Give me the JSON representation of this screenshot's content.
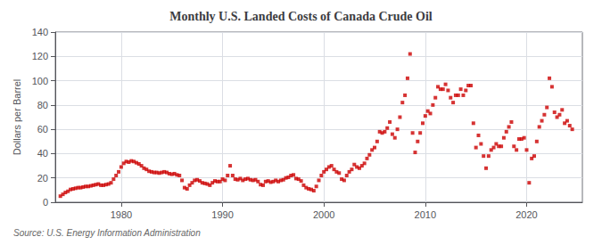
{
  "chart_data": {
    "type": "scatter",
    "title": "Monthly U.S. Landed Costs of Canada Crude Oil",
    "ylabel": "Dollars per Barrel",
    "annotation": "Source: U.S. Energy Information Administration",
    "color": "#CC0000",
    "marker": "square",
    "grid": true,
    "xlim": [
      1973.5,
      2025.5
    ],
    "xticks": [
      1980,
      1990,
      2000,
      2010,
      2020
    ],
    "ylim": [
      0,
      140
    ],
    "yticks": [
      0,
      20,
      40,
      60,
      80,
      100,
      120,
      140
    ],
    "x": [
      1974.0,
      1974.25,
      1974.5,
      1974.75,
      1975.0,
      1975.25,
      1975.5,
      1975.75,
      1976.0,
      1976.25,
      1976.5,
      1976.75,
      1977.0,
      1977.25,
      1977.5,
      1977.75,
      1978.0,
      1978.25,
      1978.5,
      1978.75,
      1979.0,
      1979.25,
      1979.5,
      1979.75,
      1980.0,
      1980.25,
      1980.5,
      1980.75,
      1981.0,
      1981.25,
      1981.5,
      1981.75,
      1982.0,
      1982.25,
      1982.5,
      1982.75,
      1983.0,
      1983.25,
      1983.5,
      1983.75,
      1984.0,
      1984.25,
      1984.5,
      1984.75,
      1985.0,
      1985.25,
      1985.5,
      1985.75,
      1986.0,
      1986.25,
      1986.5,
      1986.75,
      1987.0,
      1987.25,
      1987.5,
      1987.75,
      1988.0,
      1988.25,
      1988.5,
      1988.75,
      1989.0,
      1989.25,
      1989.5,
      1989.75,
      1990.0,
      1990.25,
      1990.5,
      1990.75,
      1991.0,
      1991.25,
      1991.5,
      1991.75,
      1992.0,
      1992.25,
      1992.5,
      1992.75,
      1993.0,
      1993.25,
      1993.5,
      1993.75,
      1994.0,
      1994.25,
      1994.5,
      1994.75,
      1995.0,
      1995.25,
      1995.5,
      1995.75,
      1996.0,
      1996.25,
      1996.5,
      1996.75,
      1997.0,
      1997.25,
      1997.5,
      1997.75,
      1998.0,
      1998.25,
      1998.5,
      1998.75,
      1999.0,
      1999.25,
      1999.5,
      1999.75,
      2000.0,
      2000.25,
      2000.5,
      2000.75,
      2001.0,
      2001.25,
      2001.5,
      2001.75,
      2002.0,
      2002.25,
      2002.5,
      2002.75,
      2003.0,
      2003.25,
      2003.5,
      2003.75,
      2004.0,
      2004.25,
      2004.5,
      2004.75,
      2005.0,
      2005.25,
      2005.5,
      2005.75,
      2006.0,
      2006.25,
      2006.5,
      2006.75,
      2007.0,
      2007.25,
      2007.5,
      2007.75,
      2008.0,
      2008.25,
      2008.5,
      2008.75,
      2009.0,
      2009.25,
      2009.5,
      2009.75,
      2010.0,
      2010.25,
      2010.5,
      2010.75,
      2011.0,
      2011.25,
      2011.5,
      2011.75,
      2012.0,
      2012.25,
      2012.5,
      2012.75,
      2013.0,
      2013.25,
      2013.5,
      2013.75,
      2014.0,
      2014.25,
      2014.5,
      2014.75,
      2015.0,
      2015.25,
      2015.5,
      2015.75,
      2016.0,
      2016.25,
      2016.5,
      2016.75,
      2017.0,
      2017.25,
      2017.5,
      2017.75,
      2018.0,
      2018.25,
      2018.5,
      2018.75,
      2019.0,
      2019.25,
      2019.5,
      2019.75,
      2020.0,
      2020.25,
      2020.5,
      2020.75,
      2021.0,
      2021.25,
      2021.5,
      2021.75,
      2022.0,
      2022.25,
      2022.5,
      2022.75,
      2023.0,
      2023.25,
      2023.5,
      2023.75,
      2024.0,
      2024.25,
      2024.5
    ],
    "values": [
      5.0,
      6.5,
      8.0,
      9.0,
      10.5,
      11.0,
      11.5,
      12.0,
      12.0,
      12.5,
      13.0,
      13.0,
      13.5,
      14.0,
      14.5,
      15.0,
      14.0,
      14.0,
      14.5,
      15.0,
      16.0,
      19.0,
      22.0,
      25.0,
      29.0,
      32.0,
      33.5,
      33.0,
      34.0,
      33.5,
      32.5,
      31.5,
      30.0,
      28.0,
      27.0,
      25.5,
      25.0,
      24.5,
      24.5,
      24.0,
      24.5,
      25.0,
      24.5,
      23.5,
      23.0,
      23.5,
      22.5,
      22.0,
      18.0,
      12.0,
      11.0,
      14.0,
      16.0,
      18.0,
      18.5,
      17.5,
      16.0,
      15.5,
      15.0,
      14.0,
      16.0,
      17.5,
      17.0,
      17.0,
      19.0,
      18.0,
      22.0,
      30.0,
      22.0,
      19.0,
      18.5,
      19.5,
      18.0,
      19.0,
      19.5,
      18.5,
      18.0,
      18.5,
      17.0,
      14.5,
      14.0,
      17.0,
      17.5,
      16.5,
      17.0,
      18.0,
      17.0,
      18.0,
      18.5,
      20.0,
      20.5,
      22.0,
      22.5,
      19.5,
      19.0,
      17.5,
      14.0,
      12.0,
      11.0,
      10.5,
      9.5,
      13.0,
      18.0,
      22.0,
      25.0,
      27.0,
      29.0,
      30.0,
      27.0,
      25.0,
      24.0,
      19.0,
      18.0,
      22.0,
      25.0,
      27.0,
      31.0,
      29.0,
      28.0,
      30.0,
      32.0,
      36.0,
      39.0,
      43.0,
      45.0,
      50.0,
      58.0,
      57.0,
      58.0,
      61.0,
      66.0,
      56.0,
      53.0,
      60.0,
      70.0,
      82.0,
      88.0,
      102.0,
      122.0,
      57.0,
      41.0,
      50.0,
      57.0,
      65.0,
      71.0,
      75.0,
      73.0,
      80.0,
      86.0,
      95.0,
      93.0,
      93.0,
      97.0,
      92.0,
      86.0,
      82.0,
      88.0,
      88.0,
      93.0,
      88.0,
      92.0,
      96.0,
      96.0,
      65.0,
      45.0,
      55.0,
      48.0,
      38.0,
      28.0,
      38.0,
      43.0,
      45.0,
      48.0,
      46.0,
      46.0,
      53.0,
      58.0,
      62.0,
      66.0,
      46.0,
      43.0,
      52.0,
      52.0,
      53.0,
      43.0,
      16.0,
      36.0,
      38.0,
      50.0,
      62.0,
      67.0,
      72.0,
      78.0,
      102.0,
      95.0,
      74.0,
      70.0,
      72.0,
      76.0,
      65.0,
      67.0,
      63.0,
      60.0
    ]
  }
}
